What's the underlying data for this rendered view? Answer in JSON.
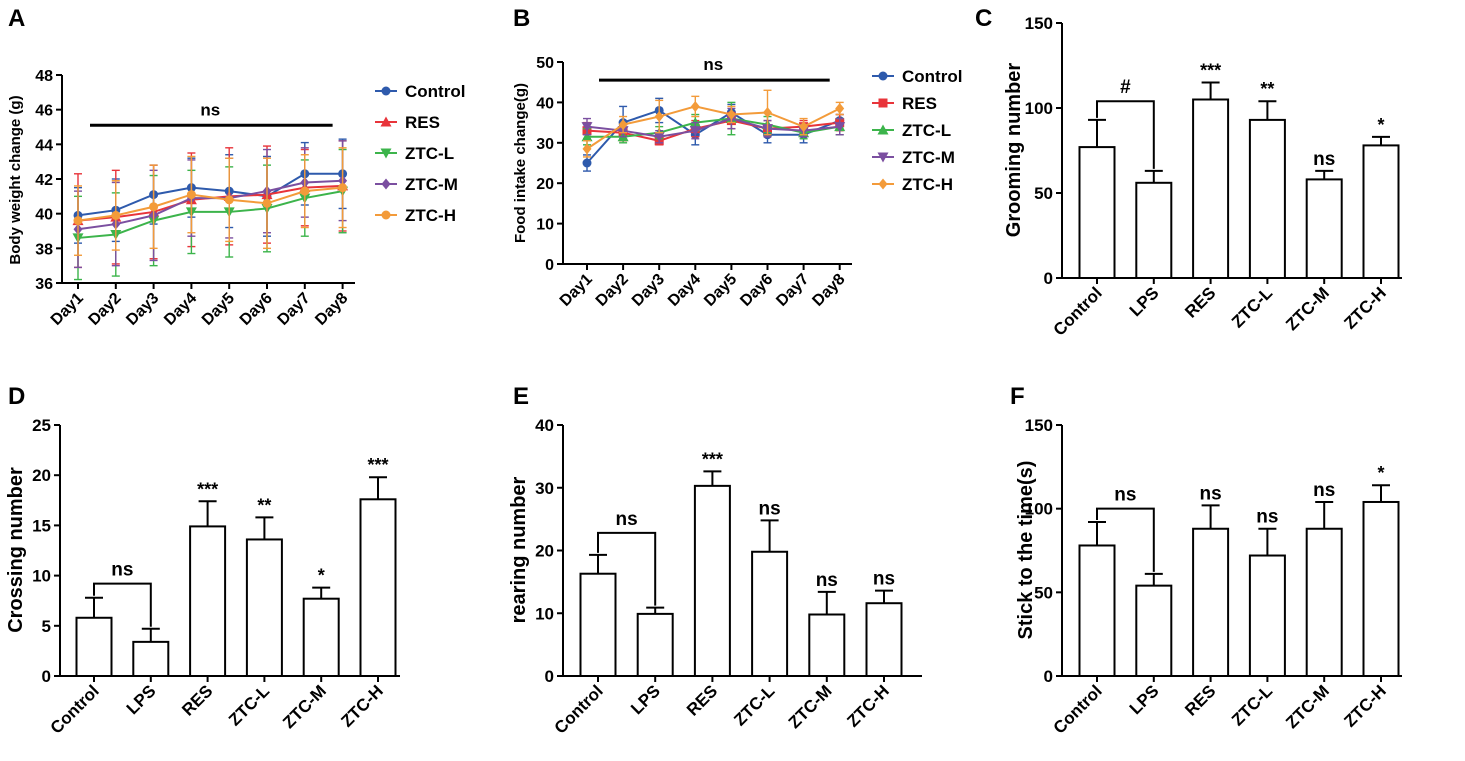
{
  "figure": {
    "panel_labels": [
      "A",
      "B",
      "C",
      "D",
      "E",
      "F"
    ]
  },
  "chart_data": [
    {
      "id": "A",
      "type": "line",
      "ylabel": "Body weight change (g)",
      "xlabel": "",
      "ylim": [
        36,
        48
      ],
      "yticks": [
        36,
        38,
        40,
        42,
        44,
        46,
        48
      ],
      "categories": [
        "Day1",
        "Day2",
        "Day3",
        "Day4",
        "Day5",
        "Day6",
        "Day7",
        "Day8"
      ],
      "sig_line": {
        "label": "ns",
        "value": 45.1,
        "from": 0,
        "to": 7
      },
      "legend_position": "right",
      "series": [
        {
          "name": "Control",
          "color": "#2e5aac",
          "marker": "circle",
          "values": [
            39.9,
            40.2,
            41.1,
            41.5,
            41.3,
            41.0,
            42.3,
            42.3
          ],
          "errors": [
            1.6,
            1.8,
            1.7,
            1.7,
            2.1,
            2.3,
            1.8,
            2.0
          ]
        },
        {
          "name": "RES",
          "color": "#e8343a",
          "marker": "triangle-up",
          "values": [
            39.6,
            39.8,
            40.1,
            40.8,
            41.0,
            41.1,
            41.5,
            41.6
          ],
          "errors": [
            2.7,
            2.7,
            2.7,
            2.7,
            2.8,
            2.8,
            2.2,
            2.6
          ]
        },
        {
          "name": "ZTC-L",
          "color": "#3cb44b",
          "marker": "triangle-down",
          "values": [
            38.6,
            38.8,
            39.6,
            40.1,
            40.1,
            40.3,
            40.9,
            41.3
          ],
          "errors": [
            2.4,
            2.4,
            2.6,
            2.4,
            2.6,
            2.5,
            2.2,
            2.4
          ]
        },
        {
          "name": "ZTC-M",
          "color": "#7b4fa0",
          "marker": "diamond",
          "values": [
            39.1,
            39.4,
            39.9,
            40.9,
            40.9,
            41.3,
            41.8,
            41.9
          ],
          "errors": [
            2.2,
            2.4,
            2.6,
            2.2,
            2.3,
            2.4,
            2.0,
            2.3
          ]
        },
        {
          "name": "ZTC-H",
          "color": "#f39b3a",
          "marker": "circle",
          "values": [
            39.6,
            39.9,
            40.4,
            41.1,
            40.8,
            40.6,
            41.3,
            41.5
          ],
          "errors": [
            2.0,
            2.0,
            2.4,
            2.2,
            2.4,
            2.6,
            2.1,
            2.3
          ]
        }
      ]
    },
    {
      "id": "B",
      "type": "line",
      "ylabel": "Food intake change(g)",
      "xlabel": "",
      "ylim": [
        0,
        50
      ],
      "yticks": [
        0,
        10,
        20,
        30,
        40,
        50
      ],
      "categories": [
        "Day1",
        "Day2",
        "Day3",
        "Day4",
        "Day5",
        "Day6",
        "Day7",
        "Day8"
      ],
      "sig_line": {
        "label": "ns",
        "value": 45.5,
        "from": 0,
        "to": 7
      },
      "legend_position": "right",
      "series": [
        {
          "name": "Control",
          "color": "#2e5aac",
          "marker": "circle",
          "values": [
            25.0,
            35.0,
            38.0,
            32.0,
            37.5,
            32.0,
            32.0,
            35.5
          ],
          "errors": [
            2.0,
            4.0,
            3.0,
            2.5,
            2.0,
            2.0,
            2.0,
            1.5
          ]
        },
        {
          "name": "RES",
          "color": "#e8343a",
          "marker": "square",
          "values": [
            33.0,
            32.5,
            30.5,
            33.5,
            35.5,
            33.5,
            34.0,
            35.0
          ],
          "errors": [
            2.0,
            2.0,
            1.0,
            2.0,
            2.0,
            2.0,
            1.5,
            2.0
          ]
        },
        {
          "name": "ZTC-L",
          "color": "#3cb44b",
          "marker": "triangle-up",
          "values": [
            31.5,
            31.5,
            32.5,
            35.0,
            36.0,
            34.5,
            32.5,
            34.0
          ],
          "errors": [
            2.0,
            1.5,
            1.5,
            2.0,
            4.0,
            2.0,
            1.5,
            2.0
          ]
        },
        {
          "name": "ZTC-M",
          "color": "#7b4fa0",
          "marker": "triangle-down",
          "values": [
            34.0,
            33.0,
            31.5,
            33.0,
            36.0,
            33.5,
            33.0,
            34.0
          ],
          "errors": [
            2.0,
            1.5,
            1.5,
            2.0,
            2.5,
            2.0,
            1.5,
            2.0
          ]
        },
        {
          "name": "ZTC-H",
          "color": "#f39b3a",
          "marker": "diamond",
          "values": [
            28.5,
            34.5,
            36.5,
            39.0,
            37.0,
            37.5,
            34.0,
            38.5
          ],
          "errors": [
            2.0,
            2.0,
            4.0,
            2.5,
            2.0,
            5.5,
            2.0,
            1.5
          ]
        }
      ]
    },
    {
      "id": "C",
      "type": "bar",
      "ylabel": "Grooming number",
      "xlabel": "",
      "ylim": [
        0,
        150
      ],
      "yticks": [
        0,
        50,
        100,
        150
      ],
      "categories": [
        "Control",
        "LPS",
        "RES",
        "ZTC-L",
        "ZTC-M",
        "ZTC-H"
      ],
      "values": [
        77,
        56,
        105,
        93,
        58,
        78
      ],
      "errors": [
        16,
        7,
        10,
        11,
        5,
        5
      ],
      "significance": [
        "",
        "",
        "***",
        "**",
        "ns",
        "*"
      ],
      "bracket": {
        "from": 0,
        "to": 1,
        "label": "#",
        "value": 104
      }
    },
    {
      "id": "D",
      "type": "bar",
      "ylabel": "Crossing number",
      "xlabel": "",
      "ylim": [
        0,
        25
      ],
      "yticks": [
        0,
        5,
        10,
        15,
        20,
        25
      ],
      "categories": [
        "Control",
        "LPS",
        "RES",
        "ZTC-L",
        "ZTC-M",
        "ZTC-H"
      ],
      "values": [
        5.8,
        3.4,
        14.9,
        13.6,
        7.7,
        17.6
      ],
      "errors": [
        2.0,
        1.3,
        2.5,
        2.2,
        1.1,
        2.2
      ],
      "significance": [
        "",
        "",
        "***",
        "**",
        "*",
        "***"
      ],
      "bracket": {
        "from": 0,
        "to": 1,
        "label": "ns",
        "value": 9.2
      }
    },
    {
      "id": "E",
      "type": "bar",
      "ylabel": "rearing number",
      "xlabel": "",
      "ylim": [
        0,
        40
      ],
      "yticks": [
        0,
        10,
        20,
        30,
        40
      ],
      "categories": [
        "Control",
        "LPS",
        "RES",
        "ZTC-L",
        "ZTC-M",
        "ZTC-H"
      ],
      "values": [
        16.3,
        9.9,
        30.3,
        19.8,
        9.8,
        11.6
      ],
      "errors": [
        3.0,
        1.0,
        2.3,
        5.0,
        3.6,
        2.0
      ],
      "significance": [
        "",
        "",
        "***",
        "ns",
        "ns",
        "ns"
      ],
      "bracket": {
        "from": 0,
        "to": 1,
        "label": "ns",
        "value": 22.8
      }
    },
    {
      "id": "F",
      "type": "bar",
      "ylabel": "Stick to the time(s)",
      "xlabel": "",
      "ylim": [
        0,
        150
      ],
      "yticks": [
        0,
        50,
        100,
        150
      ],
      "categories": [
        "Control",
        "LPS",
        "RES",
        "ZTC-L",
        "ZTC-M",
        "ZTC-H"
      ],
      "values": [
        78,
        54,
        88,
        72,
        88,
        104
      ],
      "errors": [
        14,
        7,
        14,
        16,
        16,
        10
      ],
      "significance": [
        "",
        "",
        "ns",
        "ns",
        "ns",
        "*"
      ],
      "bracket": {
        "from": 0,
        "to": 1,
        "label": "ns",
        "value": 100
      }
    }
  ]
}
